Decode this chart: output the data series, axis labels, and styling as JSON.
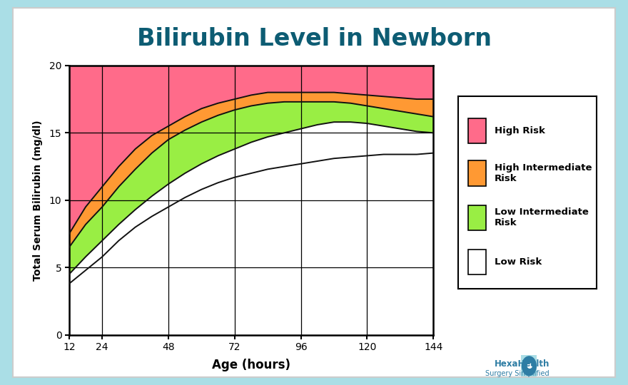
{
  "title": "Bilirubin Level in Newborn",
  "xlabel": "Age (hours)",
  "ylabel": "Total Serum Bilirubin (mg/dl)",
  "background_color": "#aadee6",
  "chart_bg": "#ffffff",
  "outer_card_color": "#f0f0f0",
  "title_color": "#0d5c73",
  "x_ticks": [
    12,
    24,
    48,
    72,
    96,
    120,
    144
  ],
  "ylim": [
    0,
    20
  ],
  "xlim": [
    12,
    144
  ],
  "hours": [
    12,
    18,
    24,
    30,
    36,
    42,
    48,
    54,
    60,
    66,
    72,
    78,
    84,
    90,
    96,
    102,
    108,
    114,
    120,
    126,
    132,
    138,
    144
  ],
  "high_risk_top": [
    20,
    20,
    20,
    20,
    20,
    20,
    20,
    20,
    20,
    20,
    20,
    20,
    20,
    20,
    20,
    20,
    20,
    20,
    20,
    20,
    20,
    20,
    20
  ],
  "high_risk_bottom": [
    7.5,
    9.5,
    11.0,
    12.5,
    13.8,
    14.8,
    15.5,
    16.2,
    16.8,
    17.2,
    17.5,
    17.8,
    18.0,
    18.0,
    18.0,
    18.0,
    18.0,
    17.9,
    17.8,
    17.7,
    17.6,
    17.5,
    17.5
  ],
  "high_inter_bottom": [
    6.5,
    8.2,
    9.5,
    11.0,
    12.3,
    13.5,
    14.5,
    15.2,
    15.8,
    16.3,
    16.7,
    17.0,
    17.2,
    17.3,
    17.3,
    17.3,
    17.3,
    17.2,
    17.0,
    16.8,
    16.6,
    16.4,
    16.2
  ],
  "low_inter_bottom": [
    4.5,
    5.8,
    7.0,
    8.2,
    9.3,
    10.3,
    11.2,
    12.0,
    12.7,
    13.3,
    13.8,
    14.3,
    14.7,
    15.0,
    15.3,
    15.6,
    15.8,
    15.8,
    15.7,
    15.5,
    15.3,
    15.1,
    15.0
  ],
  "low_risk_bottom": [
    3.8,
    4.8,
    5.8,
    7.0,
    8.0,
    8.8,
    9.5,
    10.2,
    10.8,
    11.3,
    11.7,
    12.0,
    12.3,
    12.5,
    12.7,
    12.9,
    13.1,
    13.2,
    13.3,
    13.4,
    13.4,
    13.4,
    13.5
  ],
  "color_high_risk": "#FF6B8A",
  "color_high_inter": "#FF9933",
  "color_low_inter": "#99EE44",
  "color_low_risk": "#ffffff",
  "legend_labels": [
    "High Risk",
    "High Intermediate\nRisk",
    "Low Intermediate\nRisk",
    "Low Risk"
  ],
  "legend_colors": [
    "#FF6B8A",
    "#FF9933",
    "#99EE44",
    "#ffffff"
  ]
}
